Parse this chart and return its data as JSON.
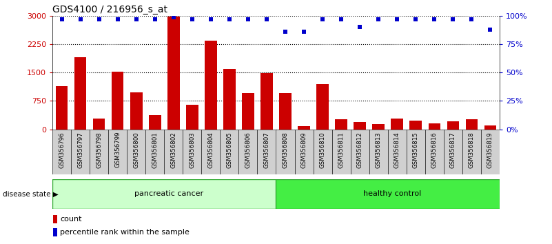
{
  "title": "GDS4100 / 216956_s_at",
  "samples": [
    "GSM356796",
    "GSM356797",
    "GSM356798",
    "GSM356799",
    "GSM356800",
    "GSM356801",
    "GSM356802",
    "GSM356803",
    "GSM356804",
    "GSM356805",
    "GSM356806",
    "GSM356807",
    "GSM356808",
    "GSM356809",
    "GSM356810",
    "GSM356811",
    "GSM356812",
    "GSM356813",
    "GSM356814",
    "GSM356815",
    "GSM356816",
    "GSM356817",
    "GSM356818",
    "GSM356819"
  ],
  "counts": [
    1150,
    1900,
    280,
    1530,
    970,
    380,
    2980,
    650,
    2350,
    1600,
    950,
    1490,
    950,
    80,
    1200,
    270,
    200,
    130,
    280,
    230,
    160,
    220,
    270,
    100
  ],
  "percentile_rank": [
    97,
    97,
    97,
    97,
    97,
    97,
    99,
    97,
    97,
    97,
    97,
    97,
    86,
    86,
    97,
    97,
    90,
    97,
    97,
    97,
    97,
    97,
    97,
    88
  ],
  "n_cancer": 12,
  "n_control": 12,
  "group_label_cancer": "pancreatic cancer",
  "group_label_control": "healthy control",
  "disease_state_label": "disease state",
  "bar_color": "#cc0000",
  "dot_color": "#0000cc",
  "cancer_bg": "#ccffcc",
  "control_bg": "#44ee44",
  "separator_color": "#222222",
  "ylim_left": [
    0,
    3000
  ],
  "ylim_right": [
    0,
    100
  ],
  "yticks_left": [
    0,
    750,
    1500,
    2250,
    3000
  ],
  "yticks_right": [
    0,
    25,
    50,
    75,
    100
  ],
  "plot_bg": "#ffffff",
  "xtick_box_color": "#cccccc",
  "legend_count_label": "count",
  "legend_pct_label": "percentile rank within the sample"
}
